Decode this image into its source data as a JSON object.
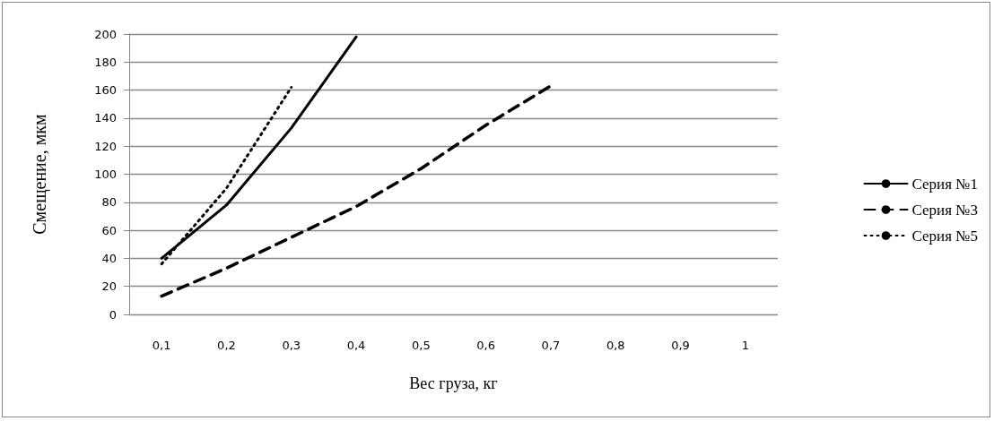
{
  "chart_data": {
    "type": "line",
    "xlabel": "Вес груза, кг",
    "ylabel": "Смещение, мкм",
    "categories": [
      "0,1",
      "0,2",
      "0,3",
      "0,4",
      "0,5",
      "0,6",
      "0,7",
      "0,8",
      "0,9",
      "1"
    ],
    "series": [
      {
        "name": "Серия №1",
        "color": "#000000",
        "line_style": "solid",
        "values": [
          40,
          78,
          133,
          198,
          null,
          null,
          null,
          null,
          null,
          null
        ]
      },
      {
        "name": "Серия №3",
        "color": "#000000",
        "line_style": "dashed",
        "values": [
          13,
          33,
          55,
          77,
          104,
          135,
          163,
          null,
          null,
          null
        ]
      },
      {
        "name": "Серия №5",
        "color": "#000000",
        "line_style": "dotted",
        "values": [
          36,
          90,
          162,
          null,
          null,
          null,
          null,
          null,
          null,
          null
        ]
      }
    ],
    "ylim": [
      0,
      200
    ],
    "yticks": [
      0,
      20,
      40,
      60,
      80,
      100,
      120,
      140,
      160,
      180,
      200
    ],
    "grid": "y",
    "legend": "right",
    "marker": "none"
  }
}
